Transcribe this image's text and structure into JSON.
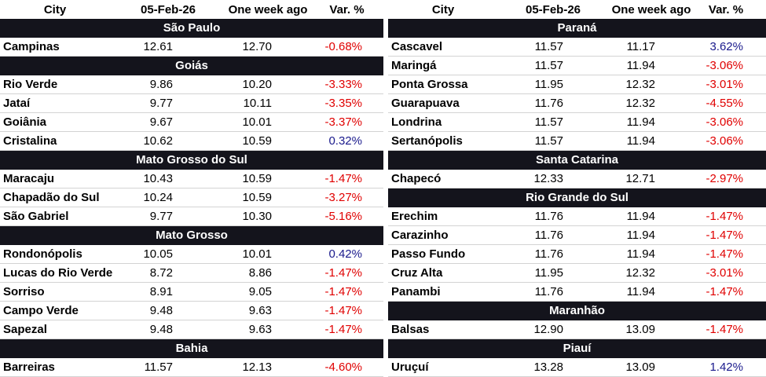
{
  "columns": {
    "city": "City",
    "date": "05-Feb-26",
    "week": "One week ago",
    "var": "Var. %"
  },
  "colors": {
    "header_bg": "#14141c",
    "negative": "#e00000",
    "positive": "#1a1a8c"
  },
  "left": [
    {
      "group": "São Paulo"
    },
    {
      "city": "Campinas",
      "cur": "12.61",
      "prev": "12.70",
      "var": "-0.68%"
    },
    {
      "group": "Goiás"
    },
    {
      "city": "Rio Verde",
      "cur": "9.86",
      "prev": "10.20",
      "var": "-3.33%"
    },
    {
      "city": "Jataí",
      "cur": "9.77",
      "prev": "10.11",
      "var": "-3.35%"
    },
    {
      "city": "Goiânia",
      "cur": "9.67",
      "prev": "10.01",
      "var": "-3.37%"
    },
    {
      "city": "Cristalina",
      "cur": "10.62",
      "prev": "10.59",
      "var": "0.32%"
    },
    {
      "group": "Mato Grosso do Sul"
    },
    {
      "city": "Maracaju",
      "cur": "10.43",
      "prev": "10.59",
      "var": "-1.47%"
    },
    {
      "city": "Chapadão do Sul",
      "cur": "10.24",
      "prev": "10.59",
      "var": "-3.27%"
    },
    {
      "city": "São Gabriel",
      "cur": "9.77",
      "prev": "10.30",
      "var": "-5.16%"
    },
    {
      "group": "Mato Grosso"
    },
    {
      "city": "Rondonópolis",
      "cur": "10.05",
      "prev": "10.01",
      "var": "0.42%"
    },
    {
      "city": "Lucas do Rio Verde",
      "cur": "8.72",
      "prev": "8.86",
      "var": "-1.47%"
    },
    {
      "city": "Sorriso",
      "cur": "8.91",
      "prev": "9.05",
      "var": "-1.47%"
    },
    {
      "city": "Campo Verde",
      "cur": "9.48",
      "prev": "9.63",
      "var": "-1.47%"
    },
    {
      "city": "Sapezal",
      "cur": "9.48",
      "prev": "9.63",
      "var": "-1.47%"
    },
    {
      "group": "Bahia"
    },
    {
      "city": "Barreiras",
      "cur": "11.57",
      "prev": "12.13",
      "var": "-4.60%"
    }
  ],
  "right": [
    {
      "group": "Paraná"
    },
    {
      "city": "Cascavel",
      "cur": "11.57",
      "prev": "11.17",
      "var": "3.62%"
    },
    {
      "city": "Maringá",
      "cur": "11.57",
      "prev": "11.94",
      "var": "-3.06%"
    },
    {
      "city": "Ponta Grossa",
      "cur": "11.95",
      "prev": "12.32",
      "var": "-3.01%"
    },
    {
      "city": "Guarapuava",
      "cur": "11.76",
      "prev": "12.32",
      "var": "-4.55%"
    },
    {
      "city": "Londrina",
      "cur": "11.57",
      "prev": "11.94",
      "var": "-3.06%"
    },
    {
      "city": "Sertanópolis",
      "cur": "11.57",
      "prev": "11.94",
      "var": "-3.06%"
    },
    {
      "group": "Santa Catarina"
    },
    {
      "city": "Chapecó",
      "cur": "12.33",
      "prev": "12.71",
      "var": "-2.97%"
    },
    {
      "group": "Rio Grande do Sul"
    },
    {
      "city": "Erechim",
      "cur": "11.76",
      "prev": "11.94",
      "var": "-1.47%"
    },
    {
      "city": "Carazinho",
      "cur": "11.76",
      "prev": "11.94",
      "var": "-1.47%"
    },
    {
      "city": "Passo Fundo",
      "cur": "11.76",
      "prev": "11.94",
      "var": "-1.47%"
    },
    {
      "city": "Cruz Alta",
      "cur": "11.95",
      "prev": "12.32",
      "var": "-3.01%"
    },
    {
      "city": "Panambi",
      "cur": "11.76",
      "prev": "11.94",
      "var": "-1.47%"
    },
    {
      "group": "Maranhão"
    },
    {
      "city": "Balsas",
      "cur": "12.90",
      "prev": "13.09",
      "var": "-1.47%"
    },
    {
      "group": "Piauí"
    },
    {
      "city": "Uruçuí",
      "cur": "13.28",
      "prev": "13.09",
      "var": "1.42%"
    }
  ]
}
